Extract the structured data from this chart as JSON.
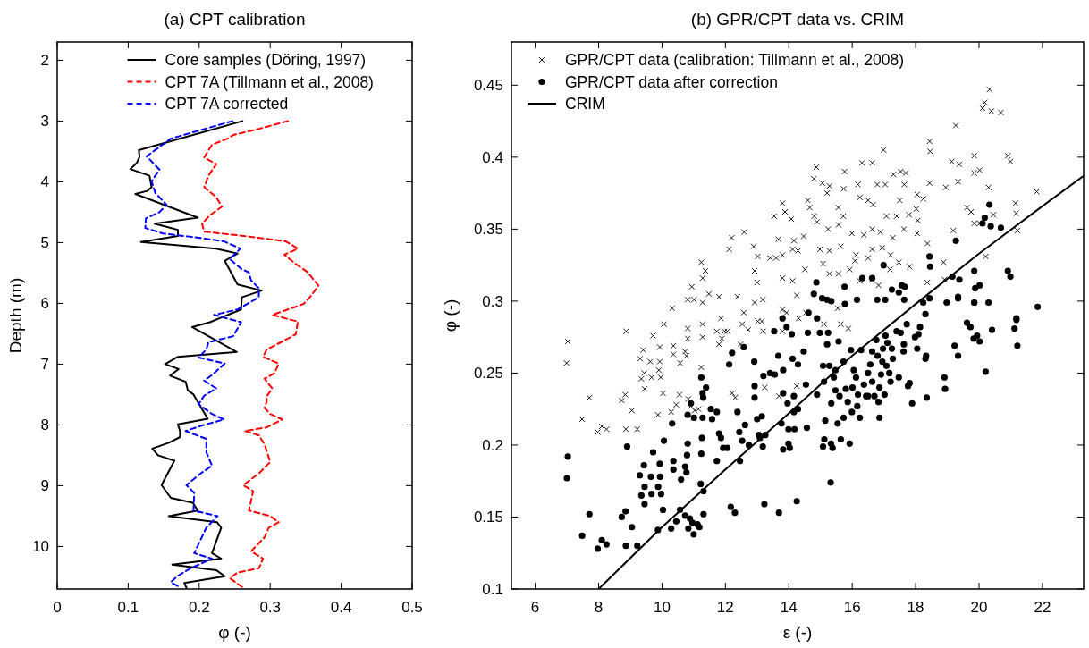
{
  "chart_data": [
    {
      "type": "line",
      "title": "(a) CPT calibration",
      "xlabel": "φ (-)",
      "ylabel": "Depth (m)",
      "xlim": [
        0,
        0.5
      ],
      "xticks": [
        0,
        0.1,
        0.2,
        0.3,
        0.4,
        0.5
      ],
      "ylim": [
        10.7,
        1.7
      ],
      "yticks": [
        2,
        3,
        4,
        5,
        6,
        7,
        8,
        9,
        10
      ],
      "legend": "top",
      "grid": false,
      "series": [
        {
          "name": "Core samples (Döring, 1997)",
          "color": "#000000",
          "line_style": "solid",
          "x": [
            0.261,
            0.115,
            0.116,
            0.112,
            0.103,
            0.13,
            0.133,
            0.127,
            0.11,
            0.198,
            0.137,
            0.17,
            0.17,
            0.118,
            0.224,
            0.254,
            0.236,
            0.254,
            0.288,
            0.26,
            0.259,
            0.215,
            0.19,
            0.253,
            0.17,
            0.152,
            0.171,
            0.159,
            0.181,
            0.184,
            0.192,
            0.212,
            0.17,
            0.173,
            0.173,
            0.158,
            0.134,
            0.142,
            0.165,
            0.147,
            0.16,
            0.191,
            0.198,
            0.157,
            0.225,
            0.231,
            0.218,
            0.231,
            0.162,
            0.224,
            0.236,
            0.179,
            0.182
          ],
          "values": [
            3.0,
            3.48,
            3.59,
            3.69,
            3.79,
            3.9,
            4.09,
            4.15,
            4.2,
            4.59,
            4.69,
            4.79,
            4.89,
            4.99,
            5.1,
            5.18,
            5.3,
            5.69,
            5.79,
            5.9,
            6.1,
            6.31,
            6.39,
            6.8,
            6.88,
            7.0,
            7.08,
            7.19,
            7.29,
            7.43,
            7.5,
            7.9,
            7.99,
            8.1,
            8.2,
            8.29,
            8.39,
            8.5,
            8.59,
            8.99,
            9.2,
            9.28,
            9.41,
            9.5,
            9.6,
            9.69,
            10.11,
            10.2,
            10.3,
            10.39,
            10.49,
            10.6,
            10.68
          ]
        },
        {
          "name": "CPT 7A (Tillmann et al., 2008)",
          "color": "#ff0000",
          "line_style": "dashed",
          "x": [
            0.325,
            0.284,
            0.248,
            0.24,
            0.218,
            0.207,
            0.224,
            0.213,
            0.207,
            0.224,
            0.232,
            0.215,
            0.204,
            0.207,
            0.27,
            0.322,
            0.339,
            0.32,
            0.336,
            0.353,
            0.368,
            0.358,
            0.347,
            0.303,
            0.339,
            0.336,
            0.32,
            0.295,
            0.29,
            0.312,
            0.306,
            0.292,
            0.303,
            0.295,
            0.295,
            0.292,
            0.3,
            0.317,
            0.295,
            0.264,
            0.284,
            0.292,
            0.3,
            0.284,
            0.262,
            0.276,
            0.27,
            0.3,
            0.312,
            0.298,
            0.292,
            0.273,
            0.29,
            0.284,
            0.254,
            0.243,
            0.262
          ],
          "values": [
            3.0,
            3.13,
            3.23,
            3.29,
            3.39,
            3.6,
            3.71,
            3.9,
            4.09,
            4.25,
            4.41,
            4.55,
            4.69,
            4.82,
            4.9,
            4.98,
            5.1,
            5.2,
            5.35,
            5.49,
            5.71,
            5.87,
            6.01,
            6.19,
            6.3,
            6.51,
            6.61,
            6.76,
            6.88,
            6.99,
            7.15,
            7.24,
            7.4,
            7.53,
            7.62,
            7.72,
            7.82,
            7.91,
            8.04,
            8.1,
            8.17,
            8.32,
            8.61,
            8.8,
            8.99,
            9.09,
            9.41,
            9.5,
            9.6,
            9.69,
            9.85,
            10.08,
            10.2,
            10.36,
            10.43,
            10.52,
            10.68
          ]
        },
        {
          "name": "CPT 7A corrected",
          "color": "#0000ff",
          "line_style": "dashed",
          "x": [
            0.247,
            0.16,
            0.126,
            0.144,
            0.133,
            0.138,
            0.154,
            0.144,
            0.125,
            0.124,
            0.149,
            0.199,
            0.235,
            0.258,
            0.243,
            0.259,
            0.27,
            0.273,
            0.284,
            0.284,
            0.254,
            0.221,
            0.259,
            0.248,
            0.213,
            0.21,
            0.199,
            0.236,
            0.218,
            0.207,
            0.224,
            0.207,
            0.199,
            0.218,
            0.235,
            0.204,
            0.181,
            0.21,
            0.21,
            0.218,
            0.202,
            0.182,
            0.193,
            0.192,
            0.226,
            0.21,
            0.202,
            0.193,
            0.218,
            0.188,
            0.169,
            0.16,
            0.174
          ],
          "values": [
            3.0,
            3.29,
            3.58,
            3.8,
            3.99,
            4.18,
            4.38,
            4.5,
            4.6,
            4.76,
            4.85,
            4.92,
            4.98,
            5.1,
            5.27,
            5.43,
            5.49,
            5.62,
            5.75,
            5.9,
            6.1,
            6.19,
            6.31,
            6.54,
            6.64,
            6.76,
            6.89,
            6.99,
            7.18,
            7.27,
            7.4,
            7.52,
            7.66,
            7.82,
            7.91,
            8.01,
            8.1,
            8.23,
            8.45,
            8.67,
            8.8,
            8.99,
            9.12,
            9.41,
            9.5,
            9.69,
            9.89,
            10.11,
            10.2,
            10.36,
            10.49,
            10.59,
            10.68
          ]
        }
      ]
    },
    {
      "type": "scatter",
      "title": "(b) GPR/CPT data vs. CRIM",
      "xlabel": "ε (-)",
      "ylabel": "φ (-)",
      "xlim": [
        5.25,
        23.3
      ],
      "xticks": [
        6,
        8,
        10,
        12,
        14,
        16,
        18,
        20,
        22
      ],
      "ylim": [
        0.1,
        0.48
      ],
      "yticks": [
        0.1,
        0.15,
        0.2,
        0.25,
        0.3,
        0.35,
        0.4,
        0.45
      ],
      "legend": "top left",
      "grid": false,
      "series": [
        {
          "name": "GPR/CPT data (calibration: Tillmann et al., 2008)",
          "marker": "cross",
          "color": "#000000",
          "x": [
            20.33,
            20.18,
            20.11,
            20.39,
            20.69,
            19.27,
            18.44,
            18.46,
            16.99,
            19.85,
            20.91,
            20.99,
            19.14,
            19.38,
            14.87,
            15.76,
            16.31,
            16.63,
            17.3,
            17.53,
            17.69,
            19.85,
            20.02,
            14.79,
            15.06,
            15.28,
            16.18,
            16.79,
            17.04,
            17.64,
            18.44,
            18.95,
            19.34,
            20.3,
            21.82,
            15.21,
            15.73,
            16.24,
            16.5,
            16.66,
            17.5,
            18.05,
            18.24,
            21.15,
            21.17,
            19.62,
            19.75,
            13.8,
            13.88,
            14.08,
            14.6,
            14.66,
            14.8,
            14.89,
            15.56,
            15.72,
            13.54,
            17.08,
            17.4,
            17.79,
            18.02,
            18.07,
            20.45,
            21.21,
            19.19,
            19.85,
            20.02,
            12.89,
            12.2,
            12.59,
            12.12,
            13.67,
            14.16,
            14.47,
            15.24,
            15.57,
            15.99,
            16.37,
            16.63,
            16.89,
            17.28,
            17.63,
            18.37,
            18.05,
            13.02,
            13.41,
            13.6,
            13.8,
            14.12,
            14.29,
            14.98,
            15.28,
            15.64,
            16.12,
            16.5,
            16.63,
            16.95,
            17.21,
            17.47,
            17.81,
            18.88,
            20.21,
            11.24,
            11.28,
            11.37,
            10.94,
            10.81,
            11.01,
            11.28,
            11.48,
            11.8,
            12.38,
            12.92,
            13.0,
            13.18,
            13.8,
            14.12,
            14.25,
            14.51,
            15.08,
            15.28,
            15.57,
            15.92,
            16.09,
            16.24,
            16.63,
            16.83,
            17.19,
            18.37,
            18.91,
            10.32,
            7.03,
            6.99,
            7.71,
            7.48,
            7.97,
            8.1,
            8.25,
            8.73,
            8.84,
            8.87,
            8.86,
            9.05,
            9.22,
            9.31,
            9.41,
            9.35,
            9.44,
            9.45,
            9.63,
            9.72,
            9.67,
            9.87,
            9.9,
            9.93,
            9.93,
            9.96,
            10.03,
            10.06,
            10.29,
            10.36,
            10.36,
            10.45,
            10.57,
            10.55,
            10.73,
            10.77,
            10.81,
            10.81,
            10.83,
            10.91,
            11.03,
            11.0,
            11.15,
            11.28,
            11.28,
            11.24,
            11.73,
            11.8,
            11.86,
            11.89,
            11.97,
            12.06,
            12.21,
            12.31,
            12.48,
            12.53,
            12.58,
            12.72,
            12.92,
            13.02,
            13.15,
            13.19,
            13.24,
            13.69,
            13.8,
            13.8,
            13.93,
            14.25,
            14.31,
            14.54,
            15.11,
            15.54,
            15.64,
            15.88
          ],
          "values": [
            0.447,
            0.438,
            0.434,
            0.432,
            0.431,
            0.422,
            0.411,
            0.404,
            0.405,
            0.401,
            0.401,
            0.397,
            0.397,
            0.395,
            0.393,
            0.39,
            0.396,
            0.396,
            0.388,
            0.39,
            0.389,
            0.389,
            0.391,
            0.385,
            0.382,
            0.38,
            0.381,
            0.381,
            0.381,
            0.381,
            0.382,
            0.379,
            0.383,
            0.379,
            0.376,
            0.375,
            0.378,
            0.372,
            0.37,
            0.367,
            0.37,
            0.374,
            0.371,
            0.368,
            0.361,
            0.365,
            0.362,
            0.368,
            0.362,
            0.357,
            0.37,
            0.365,
            0.359,
            0.355,
            0.365,
            0.359,
            0.359,
            0.359,
            0.359,
            0.36,
            0.364,
            0.356,
            0.36,
            0.349,
            0.349,
            0.354,
            0.354,
            0.338,
            0.344,
            0.348,
            0.336,
            0.343,
            0.342,
            0.345,
            0.35,
            0.353,
            0.347,
            0.346,
            0.35,
            0.348,
            0.344,
            0.35,
            0.34,
            0.347,
            0.331,
            0.33,
            0.33,
            0.332,
            0.336,
            0.335,
            0.336,
            0.335,
            0.338,
            0.332,
            0.33,
            0.336,
            0.337,
            0.332,
            0.327,
            0.324,
            0.327,
            0.331,
            0.327,
            0.316,
            0.321,
            0.31,
            0.301,
            0.301,
            0.299,
            0.305,
            0.303,
            0.303,
            0.321,
            0.313,
            0.301,
            0.316,
            0.314,
            0.304,
            0.322,
            0.326,
            0.319,
            0.319,
            0.322,
            0.328,
            0.314,
            0.315,
            0.311,
            0.322,
            0.313,
            0.315,
            0.295,
            0.272,
            0.257,
            0.233,
            0.218,
            0.209,
            0.213,
            0.211,
            0.231,
            0.235,
            0.279,
            0.211,
            0.224,
            0.211,
            0.26,
            0.266,
            0.246,
            0.25,
            0.239,
            0.258,
            0.276,
            0.247,
            0.221,
            0.252,
            0.268,
            0.258,
            0.247,
            0.236,
            0.284,
            0.223,
            0.269,
            0.263,
            0.228,
            0.257,
            0.235,
            0.265,
            0.262,
            0.281,
            0.274,
            0.232,
            0.227,
            0.224,
            0.219,
            0.225,
            0.284,
            0.275,
            0.254,
            0.279,
            0.27,
            0.288,
            0.274,
            0.279,
            0.279,
            0.236,
            0.233,
            0.27,
            0.284,
            0.292,
            0.28,
            0.299,
            0.286,
            0.286,
            0.279,
            0.24,
            0.234,
            0.294,
            0.279,
            0.292,
            0.241,
            0.288,
            0.292,
            0.284,
            0.295,
            0.284,
            0.281
          ]
        },
        {
          "name": "GPR/CPT data after correction",
          "marker": "circle",
          "color": "#000000",
          "x": [
            7.0,
            7.03,
            7.48,
            7.71,
            7.97,
            8.1,
            8.25,
            8.73,
            8.85,
            8.86,
            8.9,
            9.05,
            9.22,
            9.3,
            9.43,
            9.35,
            9.45,
            9.45,
            9.65,
            9.72,
            9.67,
            9.88,
            9.87,
            9.93,
            9.94,
            9.97,
            10.03,
            10.06,
            10.32,
            10.36,
            10.36,
            10.29,
            10.45,
            10.57,
            10.6,
            10.73,
            10.77,
            10.81,
            10.79,
            10.81,
            10.73,
            10.83,
            10.88,
            10.96,
            11.0,
            10.91,
            11.01,
            11.12,
            11.18,
            11.22,
            11.24,
            11.26,
            11.28,
            11.24,
            11.28,
            11.3,
            11.31,
            11.31,
            11.39,
            11.54,
            11.58,
            11.73,
            11.73,
            11.8,
            11.86,
            11.93,
            12.06,
            12.12,
            12.21,
            12.17,
            12.3,
            12.38,
            12.44,
            12.46,
            12.53,
            12.58,
            12.62,
            12.74,
            12.91,
            12.92,
            12.92,
            13.0,
            13.06,
            13.09,
            13.15,
            13.18,
            13.23,
            13.2,
            13.26,
            13.41,
            13.54,
            13.56,
            13.67,
            13.69,
            13.77,
            13.8,
            13.82,
            13.82,
            13.82,
            13.93,
            13.96,
            13.99,
            13.99,
            14.03,
            14.09,
            14.12,
            14.16,
            14.16,
            14.18,
            14.25,
            14.29,
            14.29,
            14.47,
            14.54,
            14.57,
            14.62,
            14.6,
            14.89,
            14.89,
            14.98,
            15.08,
            15.11,
            15.08,
            15.12,
            15.15,
            15.21,
            15.24,
            15.28,
            15.32,
            15.33,
            15.38,
            15.34,
            15.42,
            15.47,
            15.47,
            15.54,
            15.57,
            15.6,
            15.64,
            15.73,
            15.73,
            15.8,
            15.86,
            15.92,
            15.99,
            16.01,
            15.96,
            16.05,
            16.12,
            16.16,
            16.18,
            16.24,
            16.28,
            16.37,
            16.44,
            16.5,
            16.57,
            16.5,
            16.63,
            16.63,
            16.7,
            16.76,
            16.8,
            16.83,
            16.86,
            16.86,
            16.91,
            16.95,
            16.97,
            17.02,
            17.05,
            17.08,
            17.11,
            17.17,
            17.21,
            17.25,
            17.28,
            17.4,
            17.47,
            17.53,
            17.62,
            17.63,
            17.72,
            17.76,
            17.81,
            17.89,
            17.98,
            18.05,
            18.09,
            18.14,
            18.31,
            18.33,
            18.35,
            18.31,
            18.44,
            18.91,
            18.93,
            18.98,
            19.23,
            19.34,
            19.34,
            19.62,
            19.73,
            19.83,
            19.85,
            19.94,
            20.02,
            20.21,
            20.3,
            20.41,
            21.12,
            21.18,
            21.18,
            21.21,
            21.85,
            14.87,
            14.79,
            15.05,
            15.21,
            15.34,
            15.76,
            15.77,
            16.15,
            16.32,
            16.63,
            16.79,
            16.99,
            17.04,
            17.25,
            17.47,
            17.56,
            17.66,
            17.64,
            18.24,
            18.44,
            18.46,
            19.16,
            19.27,
            19.38,
            19.34,
            19.85,
            19.88,
            20.02,
            19.85,
            20.11,
            20.18,
            20.33,
            20.37,
            20.69,
            20.91,
            20.99
          ],
          "values": [
            0.177,
            0.192,
            0.137,
            0.152,
            0.128,
            0.134,
            0.131,
            0.15,
            0.154,
            0.13,
            0.199,
            0.143,
            0.13,
            0.179,
            0.186,
            0.165,
            0.171,
            0.159,
            0.178,
            0.195,
            0.166,
            0.171,
            0.141,
            0.187,
            0.178,
            0.166,
            0.155,
            0.203,
            0.215,
            0.189,
            0.183,
            0.142,
            0.147,
            0.155,
            0.176,
            0.185,
            0.181,
            0.201,
            0.193,
            0.221,
            0.151,
            0.142,
            0.149,
            0.146,
            0.138,
            0.229,
            0.219,
            0.145,
            0.143,
            0.173,
            0.194,
            0.205,
            0.219,
            0.247,
            0.236,
            0.233,
            0.168,
            0.152,
            0.24,
            0.225,
            0.218,
            0.223,
            0.189,
            0.208,
            0.205,
            0.198,
            0.198,
            0.256,
            0.264,
            0.157,
            0.153,
            0.223,
            0.209,
            0.189,
            0.203,
            0.268,
            0.214,
            0.2,
            0.258,
            0.233,
            0.241,
            0.218,
            0.207,
            0.205,
            0.22,
            0.199,
            0.159,
            0.248,
            0.207,
            0.25,
            0.279,
            0.249,
            0.262,
            0.153,
            0.215,
            0.288,
            0.252,
            0.236,
            0.197,
            0.282,
            0.229,
            0.211,
            0.201,
            0.198,
            0.277,
            0.26,
            0.234,
            0.223,
            0.211,
            0.161,
            0.256,
            0.225,
            0.265,
            0.242,
            0.212,
            0.292,
            0.278,
            0.288,
            0.235,
            0.278,
            0.255,
            0.244,
            0.199,
            0.204,
            0.217,
            0.27,
            0.278,
            0.255,
            0.174,
            0.201,
            0.198,
            0.229,
            0.247,
            0.252,
            0.238,
            0.215,
            0.272,
            0.234,
            0.204,
            0.219,
            0.258,
            0.239,
            0.23,
            0.201,
            0.223,
            0.24,
            0.266,
            0.252,
            0.247,
            0.227,
            0.235,
            0.219,
            0.266,
            0.242,
            0.234,
            0.25,
            0.256,
            0.234,
            0.244,
            0.265,
            0.234,
            0.273,
            0.262,
            0.23,
            0.219,
            0.24,
            0.249,
            0.258,
            0.267,
            0.235,
            0.276,
            0.255,
            0.271,
            0.25,
            0.244,
            0.267,
            0.26,
            0.279,
            0.247,
            0.278,
            0.265,
            0.27,
            0.284,
            0.241,
            0.243,
            0.229,
            0.275,
            0.267,
            0.277,
            0.282,
            0.26,
            0.262,
            0.233,
            0.291,
            0.302,
            0.247,
            0.239,
            0.299,
            0.269,
            0.262,
            0.302,
            0.285,
            0.282,
            0.274,
            0.299,
            0.276,
            0.272,
            0.251,
            0.299,
            0.28,
            0.281,
            0.288,
            0.287,
            0.269,
            0.296,
            0.313,
            0.305,
            0.302,
            0.301,
            0.3,
            0.31,
            0.298,
            0.301,
            0.316,
            0.316,
            0.301,
            0.325,
            0.301,
            0.308,
            0.306,
            0.311,
            0.31,
            0.301,
            0.299,
            0.331,
            0.324,
            0.317,
            0.342,
            0.315,
            0.303,
            0.321,
            0.309,
            0.311,
            0.299,
            0.354,
            0.358,
            0.367,
            0.352,
            0.351,
            0.321,
            0.317
          ]
        },
        {
          "name": "CRIM",
          "type": "line",
          "line_style": "solid",
          "color": "#000000",
          "x": [
            8,
            10,
            12,
            14,
            16,
            18,
            20,
            22,
            23.3
          ],
          "values": [
            0.1,
            0.143,
            0.183,
            0.222,
            0.262,
            0.298,
            0.333,
            0.366,
            0.387
          ]
        }
      ]
    }
  ]
}
